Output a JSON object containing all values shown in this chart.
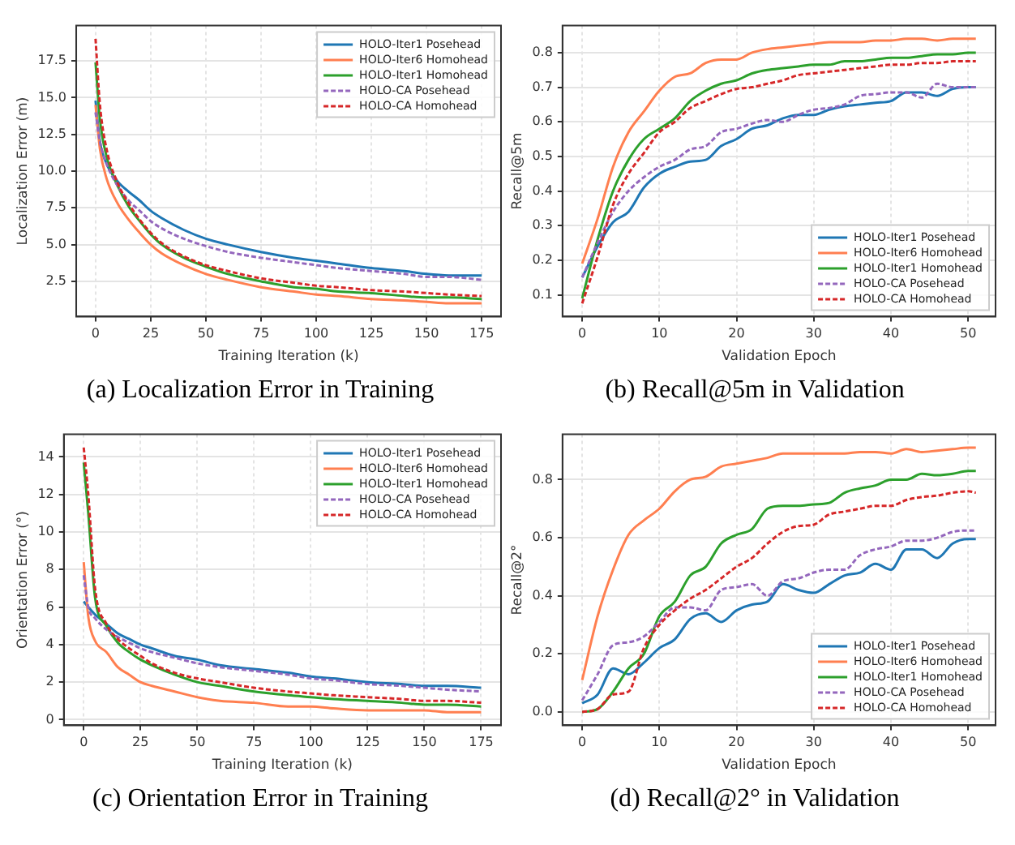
{
  "chart_data": [
    {
      "type": "line",
      "title": "(a) Localization Error in Training",
      "xlabel": "Training Iteration (k)",
      "ylabel": "Localization Error (m)",
      "x": [
        0,
        2,
        5,
        10,
        15,
        20,
        25,
        30,
        40,
        50,
        60,
        75,
        90,
        100,
        110,
        125,
        140,
        150,
        160,
        175
      ],
      "xlim": [
        -8.75,
        183.75
      ],
      "ylim": [
        0.1,
        19.9
      ],
      "xticks": [
        0,
        25,
        50,
        75,
        100,
        125,
        150,
        175
      ],
      "yticks": [
        {
          "value": 2.5,
          "label": "2.5"
        },
        {
          "value": 5,
          "label": "5.0"
        },
        {
          "value": 7.5,
          "label": "7.5"
        },
        {
          "value": 10,
          "label": "10.0"
        },
        {
          "value": 12.5,
          "label": "12.5"
        },
        {
          "value": 15,
          "label": "15.0"
        },
        {
          "value": 17.5,
          "label": "17.5"
        }
      ],
      "grid": true,
      "legend": "top right",
      "marker": "none",
      "series": [
        {
          "name": "HOLO-Iter1 Posehead",
          "color": "#1f77b4",
          "line_style": "solid",
          "values": [
            14.8,
            12,
            10.5,
            9.3,
            8.6,
            8.0,
            7.3,
            6.8,
            6.0,
            5.4,
            5.0,
            4.5,
            4.1,
            3.9,
            3.7,
            3.4,
            3.2,
            3.0,
            2.9,
            2.9
          ]
        },
        {
          "name": "HOLO-Iter6 Homohead",
          "color": "#ff7f50",
          "line_style": "solid",
          "values": [
            14.5,
            11.5,
            9.5,
            7.8,
            6.7,
            5.8,
            5.0,
            4.4,
            3.6,
            3.0,
            2.6,
            2.1,
            1.8,
            1.6,
            1.5,
            1.3,
            1.2,
            1.1,
            1.0,
            1.0
          ]
        },
        {
          "name": "HOLO-Iter1 Homohead",
          "color": "#2ca02c",
          "line_style": "solid",
          "values": [
            17.4,
            13.5,
            11,
            9.0,
            7.6,
            6.6,
            5.7,
            5.0,
            4.1,
            3.5,
            3.0,
            2.5,
            2.1,
            2.0,
            1.8,
            1.7,
            1.5,
            1.4,
            1.4,
            1.3
          ]
        },
        {
          "name": "HOLO-CA Posehead",
          "color": "#9467bd",
          "line_style": "dashed",
          "values": [
            14.0,
            12,
            10.5,
            9.0,
            8.0,
            7.3,
            6.6,
            6.1,
            5.4,
            4.9,
            4.5,
            4.1,
            3.8,
            3.6,
            3.4,
            3.2,
            3.0,
            2.8,
            2.8,
            2.6
          ]
        },
        {
          "name": "HOLO-CA Homohead",
          "color": "#d62728",
          "line_style": "dashed",
          "values": [
            19.0,
            14.5,
            11.5,
            9.2,
            7.8,
            6.7,
            5.8,
            5.1,
            4.2,
            3.6,
            3.2,
            2.7,
            2.4,
            2.2,
            2.1,
            1.9,
            1.8,
            1.7,
            1.6,
            1.5
          ]
        }
      ]
    },
    {
      "type": "line",
      "title": "(b) Recall@5m in Validation",
      "xlabel": "Validation Epoch",
      "ylabel": "Recall@5m",
      "x": [
        0,
        2,
        4,
        6,
        8,
        10,
        12,
        14,
        16,
        18,
        20,
        22,
        24,
        26,
        28,
        30,
        32,
        34,
        36,
        38,
        40,
        42,
        44,
        46,
        48,
        50,
        51
      ],
      "xlim": [
        -2.55,
        53.55
      ],
      "ylim": [
        0.037,
        0.878
      ],
      "xticks": [
        0,
        10,
        20,
        30,
        40,
        50
      ],
      "yticks": [
        0.1,
        0.2,
        0.3,
        0.4,
        0.5,
        0.6,
        0.7,
        0.8
      ],
      "grid": true,
      "legend": "bottom right",
      "marker": "none",
      "series": [
        {
          "name": "HOLO-Iter1 Posehead",
          "color": "#1f77b4",
          "line_style": "solid",
          "values": [
            0.15,
            0.24,
            0.31,
            0.34,
            0.41,
            0.45,
            0.47,
            0.485,
            0.49,
            0.53,
            0.55,
            0.58,
            0.59,
            0.61,
            0.62,
            0.62,
            0.635,
            0.645,
            0.65,
            0.655,
            0.66,
            0.685,
            0.685,
            0.675,
            0.695,
            0.7,
            0.7
          ]
        },
        {
          "name": "HOLO-Iter6 Homohead",
          "color": "#ff7f50",
          "line_style": "solid",
          "values": [
            0.19,
            0.32,
            0.47,
            0.57,
            0.63,
            0.69,
            0.73,
            0.74,
            0.77,
            0.78,
            0.78,
            0.8,
            0.81,
            0.815,
            0.82,
            0.825,
            0.83,
            0.83,
            0.83,
            0.835,
            0.835,
            0.84,
            0.84,
            0.835,
            0.84,
            0.84,
            0.84
          ]
        },
        {
          "name": "HOLO-Iter1 Homohead",
          "color": "#2ca02c",
          "line_style": "solid",
          "values": [
            0.09,
            0.26,
            0.4,
            0.49,
            0.55,
            0.58,
            0.61,
            0.66,
            0.69,
            0.71,
            0.72,
            0.74,
            0.75,
            0.755,
            0.76,
            0.765,
            0.765,
            0.775,
            0.775,
            0.78,
            0.785,
            0.785,
            0.79,
            0.795,
            0.795,
            0.8,
            0.8
          ]
        },
        {
          "name": "HOLO-CA Posehead",
          "color": "#9467bd",
          "line_style": "dashed",
          "values": [
            0.15,
            0.25,
            0.34,
            0.4,
            0.44,
            0.47,
            0.49,
            0.52,
            0.53,
            0.57,
            0.58,
            0.595,
            0.605,
            0.6,
            0.62,
            0.635,
            0.64,
            0.65,
            0.675,
            0.68,
            0.685,
            0.685,
            0.67,
            0.71,
            0.7,
            0.7,
            0.7
          ]
        },
        {
          "name": "HOLO-CA Homohead",
          "color": "#d62728",
          "line_style": "dashed",
          "values": [
            0.075,
            0.21,
            0.36,
            0.45,
            0.51,
            0.57,
            0.6,
            0.64,
            0.66,
            0.68,
            0.695,
            0.7,
            0.71,
            0.72,
            0.735,
            0.74,
            0.745,
            0.75,
            0.755,
            0.76,
            0.765,
            0.765,
            0.77,
            0.77,
            0.775,
            0.775,
            0.775
          ]
        }
      ]
    },
    {
      "type": "line",
      "title": "(c) Orientation Error in Training",
      "xlabel": "Training Iteration (k)",
      "ylabel": "Orientation Error (°)",
      "x": [
        0,
        2,
        5,
        10,
        15,
        20,
        25,
        30,
        40,
        50,
        60,
        75,
        90,
        100,
        110,
        125,
        140,
        150,
        160,
        175
      ],
      "xlim": [
        -8.75,
        183.75
      ],
      "ylim": [
        -0.3,
        15.2
      ],
      "xticks": [
        0,
        25,
        50,
        75,
        100,
        125,
        150,
        175
      ],
      "yticks": [
        0,
        2,
        4,
        6,
        8,
        10,
        12,
        14
      ],
      "grid": true,
      "legend": "top right",
      "marker": "none",
      "series": [
        {
          "name": "HOLO-Iter1 Posehead",
          "color": "#1f77b4",
          "line_style": "solid",
          "values": [
            6.3,
            6.0,
            5.6,
            5.1,
            4.6,
            4.3,
            4.0,
            3.8,
            3.4,
            3.2,
            2.9,
            2.7,
            2.5,
            2.3,
            2.2,
            2.0,
            1.9,
            1.8,
            1.8,
            1.7
          ]
        },
        {
          "name": "HOLO-Iter6 Homohead",
          "color": "#ff7f50",
          "line_style": "solid",
          "values": [
            8.4,
            5.5,
            4.2,
            3.6,
            2.8,
            2.4,
            2.0,
            1.8,
            1.5,
            1.2,
            1.0,
            0.9,
            0.7,
            0.7,
            0.6,
            0.5,
            0.5,
            0.5,
            0.4,
            0.4
          ]
        },
        {
          "name": "HOLO-Iter1 Homohead",
          "color": "#2ca02c",
          "line_style": "solid",
          "values": [
            13.7,
            11,
            6.5,
            5.0,
            4.1,
            3.6,
            3.2,
            2.9,
            2.4,
            2.0,
            1.8,
            1.5,
            1.3,
            1.2,
            1.1,
            1.0,
            0.9,
            0.8,
            0.8,
            0.7
          ]
        },
        {
          "name": "HOLO-CA Posehead",
          "color": "#9467bd",
          "line_style": "dashed",
          "values": [
            7.7,
            6.0,
            5.4,
            4.8,
            4.4,
            4.1,
            3.8,
            3.6,
            3.3,
            3.0,
            2.8,
            2.6,
            2.4,
            2.2,
            2.1,
            1.9,
            1.8,
            1.7,
            1.6,
            1.5
          ]
        },
        {
          "name": "HOLO-CA Homohead",
          "color": "#d62728",
          "line_style": "dashed",
          "values": [
            14.5,
            12,
            7.0,
            5.1,
            4.3,
            3.8,
            3.4,
            3.0,
            2.5,
            2.2,
            2.0,
            1.7,
            1.5,
            1.4,
            1.3,
            1.2,
            1.1,
            1.0,
            1.0,
            0.9
          ]
        }
      ]
    },
    {
      "type": "line",
      "title": "(d) Recall@2° in Validation",
      "xlabel": "Validation Epoch",
      "ylabel": "Recall@2°",
      "x": [
        0,
        2,
        4,
        6,
        8,
        10,
        12,
        14,
        16,
        18,
        20,
        22,
        24,
        26,
        28,
        30,
        32,
        34,
        36,
        38,
        40,
        42,
        44,
        46,
        48,
        50,
        51
      ],
      "xlim": [
        -2.55,
        53.55
      ],
      "ylim": [
        -0.046,
        0.956
      ],
      "xticks": [
        0,
        10,
        20,
        30,
        40,
        50
      ],
      "yticks": [
        {
          "value": 0,
          "label": "0.0"
        },
        0.2,
        0.4,
        0.6,
        0.8
      ],
      "grid": true,
      "legend": "bottom right",
      "marker": "none",
      "series": [
        {
          "name": "HOLO-Iter1 Posehead",
          "color": "#1f77b4",
          "line_style": "solid",
          "values": [
            0.03,
            0.06,
            0.15,
            0.13,
            0.17,
            0.22,
            0.25,
            0.32,
            0.34,
            0.31,
            0.35,
            0.37,
            0.38,
            0.44,
            0.42,
            0.41,
            0.44,
            0.47,
            0.48,
            0.51,
            0.49,
            0.56,
            0.56,
            0.53,
            0.58,
            0.595,
            0.595
          ]
        },
        {
          "name": "HOLO-Iter6 Homohead",
          "color": "#ff7f50",
          "line_style": "solid",
          "values": [
            0.11,
            0.33,
            0.49,
            0.61,
            0.66,
            0.7,
            0.76,
            0.8,
            0.81,
            0.845,
            0.855,
            0.865,
            0.875,
            0.89,
            0.89,
            0.89,
            0.89,
            0.89,
            0.895,
            0.895,
            0.89,
            0.905,
            0.895,
            0.9,
            0.905,
            0.91,
            0.91
          ]
        },
        {
          "name": "HOLO-Iter1 Homohead",
          "color": "#2ca02c",
          "line_style": "solid",
          "values": [
            0,
            0.01,
            0.07,
            0.15,
            0.2,
            0.33,
            0.38,
            0.47,
            0.5,
            0.58,
            0.61,
            0.63,
            0.7,
            0.71,
            0.71,
            0.715,
            0.72,
            0.755,
            0.77,
            0.78,
            0.8,
            0.8,
            0.82,
            0.815,
            0.82,
            0.83,
            0.83
          ]
        },
        {
          "name": "HOLO-CA Posehead",
          "color": "#9467bd",
          "line_style": "dashed",
          "values": [
            0.04,
            0.13,
            0.23,
            0.24,
            0.26,
            0.31,
            0.36,
            0.36,
            0.35,
            0.42,
            0.43,
            0.44,
            0.4,
            0.45,
            0.46,
            0.48,
            0.49,
            0.49,
            0.54,
            0.56,
            0.57,
            0.59,
            0.59,
            0.6,
            0.62,
            0.625,
            0.625
          ]
        },
        {
          "name": "HOLO-CA Homohead",
          "color": "#d62728",
          "line_style": "dashed",
          "values": [
            0,
            0.01,
            0.06,
            0.07,
            0.22,
            0.3,
            0.35,
            0.39,
            0.42,
            0.46,
            0.5,
            0.53,
            0.58,
            0.62,
            0.64,
            0.645,
            0.68,
            0.69,
            0.7,
            0.71,
            0.71,
            0.73,
            0.74,
            0.745,
            0.755,
            0.76,
            0.755
          ]
        }
      ]
    }
  ]
}
